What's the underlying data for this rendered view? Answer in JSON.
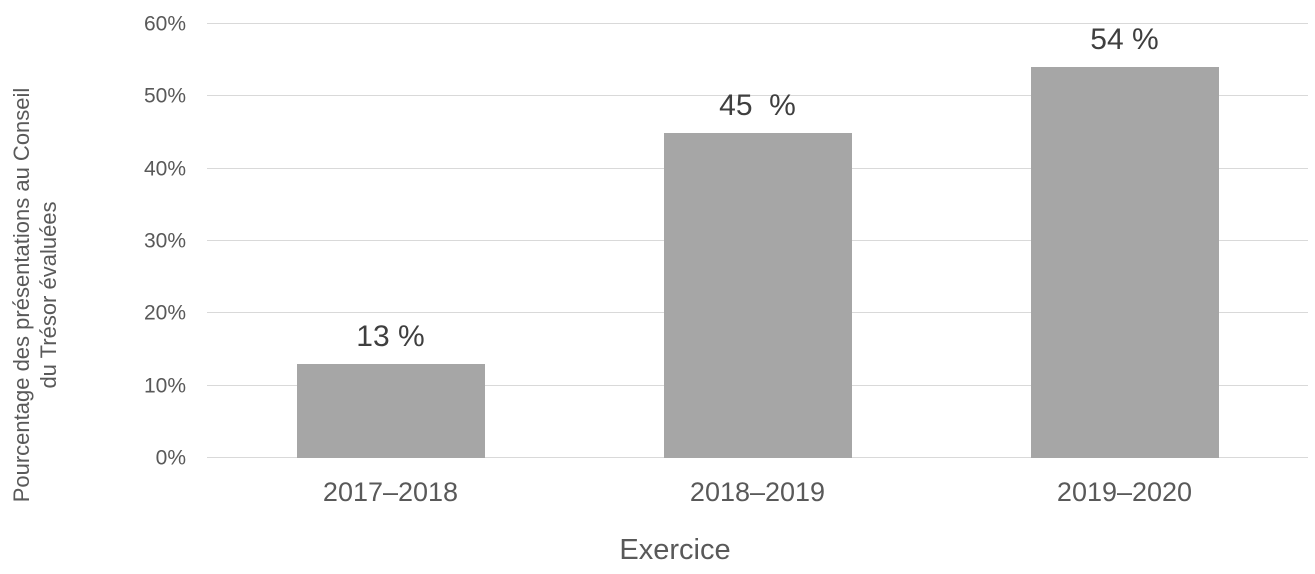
{
  "chart_data": {
    "type": "bar",
    "title": "",
    "categories": [
      "2017–2018",
      "2018–2019",
      "2019–2020"
    ],
    "values": [
      13,
      45,
      54
    ],
    "bar_labels": [
      "13 %",
      "45  %",
      "54 %"
    ],
    "xlabel": "Exercice",
    "ylabel": "Pourcentage des présentations au Conseil du Trésor évaluées",
    "ylabel_lines": [
      "Pourcentage des présentations au Conseil",
      "du Trésor évaluées"
    ],
    "ylim": [
      0,
      60
    ],
    "ytick_step": 10,
    "yticks": [
      "0%",
      "10%",
      "20%",
      "30%",
      "40%",
      "50%",
      "60%"
    ],
    "grid": true,
    "legend": false,
    "colors": {
      "bar": "#a6a6a6",
      "gridline": "#d9d9d9",
      "axis_text": "#595959",
      "data_label": "#3f3f3f",
      "background": "#ffffff"
    }
  }
}
